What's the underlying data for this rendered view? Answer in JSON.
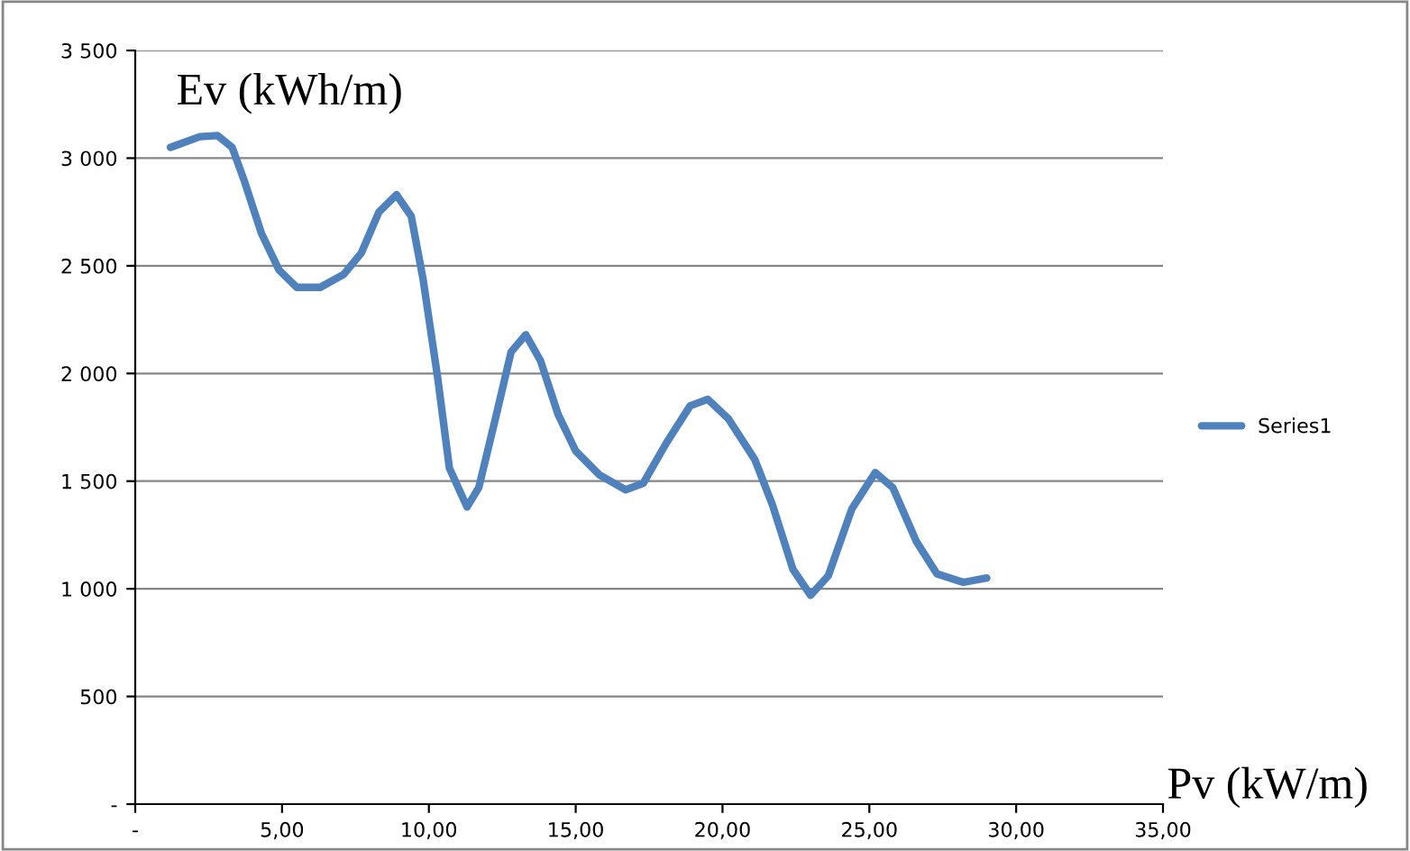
{
  "chart_data": {
    "type": "line",
    "xlabel": "Pv (kW/m)",
    "ylabel": "Ev (kWh/m)",
    "x": [
      1.2,
      2.2,
      2.8,
      3.3,
      3.7,
      4.3,
      4.9,
      5.5,
      6.3,
      7.1,
      7.7,
      8.3,
      8.9,
      9.4,
      9.8,
      10.3,
      10.7,
      11.3,
      11.7,
      12.3,
      12.8,
      13.3,
      13.8,
      14.4,
      15.0,
      15.8,
      16.7,
      17.3,
      18.1,
      18.9,
      19.5,
      20.2,
      21.1,
      21.7,
      22.4,
      23.0,
      23.6,
      24.4,
      25.2,
      25.8,
      26.6,
      27.3,
      28.2,
      29.0
    ],
    "series": [
      {
        "name": "Series1",
        "color": "#4f81bd",
        "values": [
          3050,
          3100,
          3105,
          3050,
          2900,
          2650,
          2480,
          2400,
          2400,
          2460,
          2560,
          2750,
          2830,
          2730,
          2440,
          1980,
          1560,
          1380,
          1470,
          1810,
          2100,
          2180,
          2060,
          1810,
          1640,
          1530,
          1460,
          1490,
          1680,
          1850,
          1880,
          1790,
          1600,
          1390,
          1090,
          970,
          1060,
          1370,
          1540,
          1470,
          1220,
          1070,
          1030,
          1050
        ]
      }
    ],
    "xlim": [
      0,
      35
    ],
    "xticks": [
      {
        "value": 0,
        "label": "-"
      },
      {
        "value": 5,
        "label": "5,00"
      },
      {
        "value": 10,
        "label": "10,00"
      },
      {
        "value": 15,
        "label": "15,00"
      },
      {
        "value": 20,
        "label": "20,00"
      },
      {
        "value": 25,
        "label": "25,00"
      },
      {
        "value": 30,
        "label": "30,00"
      },
      {
        "value": 35,
        "label": "35,00"
      }
    ],
    "ylim": [
      0,
      3500
    ],
    "yticks": [
      {
        "value": 0,
        "label": "-"
      },
      {
        "value": 500,
        "label": "500"
      },
      {
        "value": 1000,
        "label": "1 000"
      },
      {
        "value": 1500,
        "label": "1 500"
      },
      {
        "value": 2000,
        "label": "2 000"
      },
      {
        "value": 2500,
        "label": "2 500"
      },
      {
        "value": 3000,
        "label": "3 000"
      },
      {
        "value": 3500,
        "label": "3 500"
      }
    ],
    "grid": "y",
    "legend": "right",
    "marker": "none",
    "line_style": "solid"
  }
}
